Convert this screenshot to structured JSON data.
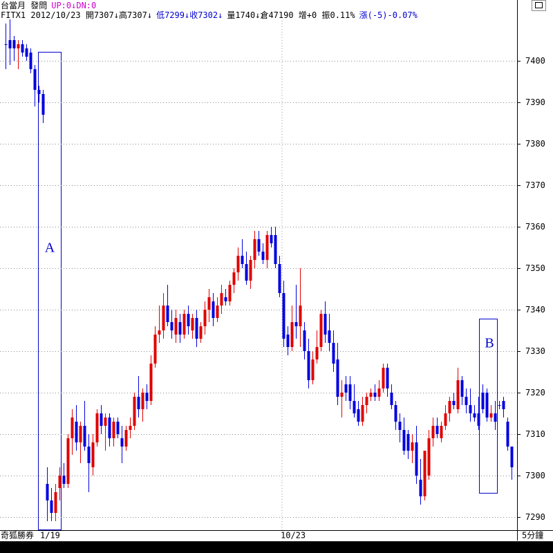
{
  "chart_data": {
    "type": "candlestick",
    "header": [
      [
        {
          "text": "台當月 發問",
          "color": "#000000"
        },
        {
          "text": "UP:0↓DN:0",
          "color": "#cc00cc"
        }
      ],
      [
        {
          "text": "FITX1 2012/10/23 開7307↓高7307↓",
          "color": "#000000"
        },
        {
          "text": "低7299↓收7302↓",
          "color": "#0000cc"
        },
        {
          "text": "量1740↓倉47190 增+0 振0.11%",
          "color": "#000000"
        },
        {
          "text": "漲(-5)-0.07%",
          "color": "#0000cc"
        }
      ]
    ],
    "source": "奇狐勝券",
    "xlabels": [
      "1/19",
      "10/23"
    ],
    "interval_label": "5分鐘",
    "annotations": [
      "A",
      "B"
    ],
    "up_color": "#e00000",
    "down_color": "#0000e0",
    "ylim": [
      7287,
      7410
    ],
    "yticks": [
      7290,
      7300,
      7310,
      7320,
      7330,
      7340,
      7350,
      7360,
      7370,
      7380,
      7390,
      7400
    ],
    "grid": true,
    "open": [
      7404,
      7405,
      7405,
      7403,
      7404,
      7403,
      7402,
      7398,
      7393,
      7392,
      7298,
      7294,
      7291,
      7297,
      7300,
      7298,
      7309,
      7313,
      7308,
      7312,
      7307,
      7302,
      7308,
      7315,
      7312,
      7314,
      7309,
      7313,
      7309,
      7307,
      7311,
      7312,
      7319,
      7316,
      7320,
      7318,
      7327,
      7334,
      7335,
      7341,
      7337,
      7334,
      7337,
      7334,
      7339,
      7335,
      7338,
      7333,
      7336,
      7340,
      7342,
      7338,
      7341,
      7343,
      7342,
      7346,
      7349,
      7353,
      7351,
      7347,
      7352,
      7357,
      7354,
      7352,
      7358,
      7358,
      7351,
      7344,
      7334,
      7331,
      7337,
      7336,
      7335,
      7330,
      7323,
      7328,
      7331,
      7339,
      7335,
      7332,
      7328,
      7319,
      7322,
      7322,
      7318,
      7316,
      7313,
      7317,
      7319,
      7320,
      7319,
      7321,
      7326,
      7320,
      7317,
      7313,
      7311,
      7310,
      7306,
      7308,
      7299,
      7295,
      7300,
      7309,
      7312,
      7309,
      7312,
      7315,
      7318,
      7316,
      7323,
      7319,
      7317,
      7315,
      7315,
      7320,
      7320,
      7314,
      7315,
      7317,
      7318,
      7313,
      7307
    ],
    "high": [
      7409,
      7410,
      7406,
      7405,
      7405,
      7404,
      7403,
      7399,
      7394,
      7393,
      7302,
      7297,
      7298,
      7302,
      7303,
      7310,
      7316,
      7317,
      7313,
      7318,
      7310,
      7310,
      7316,
      7317,
      7315,
      7315,
      7314,
      7314,
      7312,
      7312,
      7314,
      7320,
      7324,
      7321,
      7322,
      7329,
      7336,
      7341,
      7344,
      7346,
      7340,
      7340,
      7339,
      7340,
      7341,
      7339,
      7340,
      7337,
      7342,
      7345,
      7344,
      7343,
      7346,
      7345,
      7347,
      7350,
      7355,
      7357,
      7354,
      7353,
      7359,
      7359,
      7356,
      7359,
      7360,
      7360,
      7353,
      7347,
      7336,
      7341,
      7346,
      7350,
      7337,
      7333,
      7330,
      7335,
      7340,
      7342,
      7339,
      7335,
      7332,
      7323,
      7324,
      7324,
      7322,
      7318,
      7319,
      7320,
      7321,
      7322,
      7323,
      7327,
      7327,
      7322,
      7318,
      7315,
      7314,
      7311,
      7310,
      7312,
      7304,
      7306,
      7311,
      7314,
      7314,
      7313,
      7317,
      7319,
      7320,
      7326,
      7324,
      7321,
      7321,
      7317,
      7319,
      7322,
      7321,
      7317,
      7318,
      7318,
      7319,
      7314,
      7307
    ],
    "low": [
      7398,
      7399,
      7400,
      7398,
      7401,
      7400,
      7397,
      7389,
      7390,
      7385,
      7289,
      7289,
      7289,
      7294,
      7297,
      7297,
      7305,
      7306,
      7303,
      7306,
      7296,
      7300,
      7307,
      7310,
      7306,
      7307,
      7307,
      7309,
      7303,
      7306,
      7309,
      7311,
      7314,
      7313,
      7316,
      7317,
      7326,
      7332,
      7333,
      7336,
      7333,
      7332,
      7332,
      7333,
      7334,
      7333,
      7331,
      7332,
      7334,
      7337,
      7336,
      7337,
      7339,
      7341,
      7341,
      7344,
      7347,
      7350,
      7346,
      7345,
      7350,
      7353,
      7351,
      7350,
      7355,
      7350,
      7343,
      7331,
      7329,
      7330,
      7333,
      7331,
      7328,
      7321,
      7322,
      7327,
      7330,
      7332,
      7330,
      7325,
      7317,
      7314,
      7318,
      7316,
      7314,
      7312,
      7312,
      7315,
      7318,
      7318,
      7318,
      7320,
      7319,
      7316,
      7311,
      7308,
      7305,
      7304,
      7303,
      7298,
      7293,
      7294,
      7299,
      7307,
      7309,
      7308,
      7311,
      7313,
      7316,
      7315,
      7317,
      7315,
      7313,
      7313,
      7311,
      7315,
      7313,
      7313,
      7311,
      7316,
      7314,
      7306,
      7299
    ],
    "close": [
      7404,
      7403,
      7403,
      7404,
      7402,
      7401,
      7398,
      7393,
      7392,
      7387,
      7294,
      7291,
      7296,
      7300,
      7298,
      7309,
      7314,
      7308,
      7312,
      7307,
      7303,
      7308,
      7315,
      7312,
      7314,
      7309,
      7313,
      7310,
      7307,
      7311,
      7312,
      7319,
      7316,
      7320,
      7318,
      7327,
      7334,
      7335,
      7341,
      7337,
      7335,
      7338,
      7334,
      7339,
      7336,
      7338,
      7333,
      7336,
      7340,
      7343,
      7338,
      7341,
      7344,
      7342,
      7346,
      7349,
      7353,
      7351,
      7347,
      7352,
      7357,
      7354,
      7352,
      7358,
      7356,
      7351,
      7344,
      7333,
      7331,
      7337,
      7336,
      7341,
      7330,
      7323,
      7328,
      7331,
      7339,
      7334,
      7332,
      7327,
      7319,
      7320,
      7320,
      7318,
      7315,
      7313,
      7317,
      7319,
      7320,
      7319,
      7321,
      7326,
      7321,
      7317,
      7313,
      7311,
      7306,
      7306,
      7308,
      7300,
      7295,
      7306,
      7309,
      7312,
      7310,
      7312,
      7315,
      7318,
      7317,
      7323,
      7319,
      7317,
      7315,
      7314,
      7312,
      7316,
      7314,
      7315,
      7313,
      7317,
      7316,
      7307,
      7302
    ]
  }
}
